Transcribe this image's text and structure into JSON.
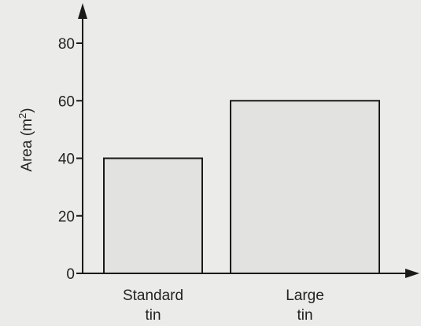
{
  "chart_data": {
    "type": "bar",
    "title": "",
    "xlabel": "",
    "ylabel": "Area (m",
    "ylabel_sup": "2",
    "ylabel_end": ")",
    "categories": [
      [
        "Standard",
        "tin"
      ],
      [
        "Large",
        "tin"
      ]
    ],
    "values": [
      40,
      60
    ],
    "ylim": [
      0,
      90
    ],
    "yticks": [
      0,
      20,
      40,
      60,
      80
    ],
    "grid": false,
    "bar_color": "#e2e2e0",
    "edge_color": "#1a1a1a"
  }
}
